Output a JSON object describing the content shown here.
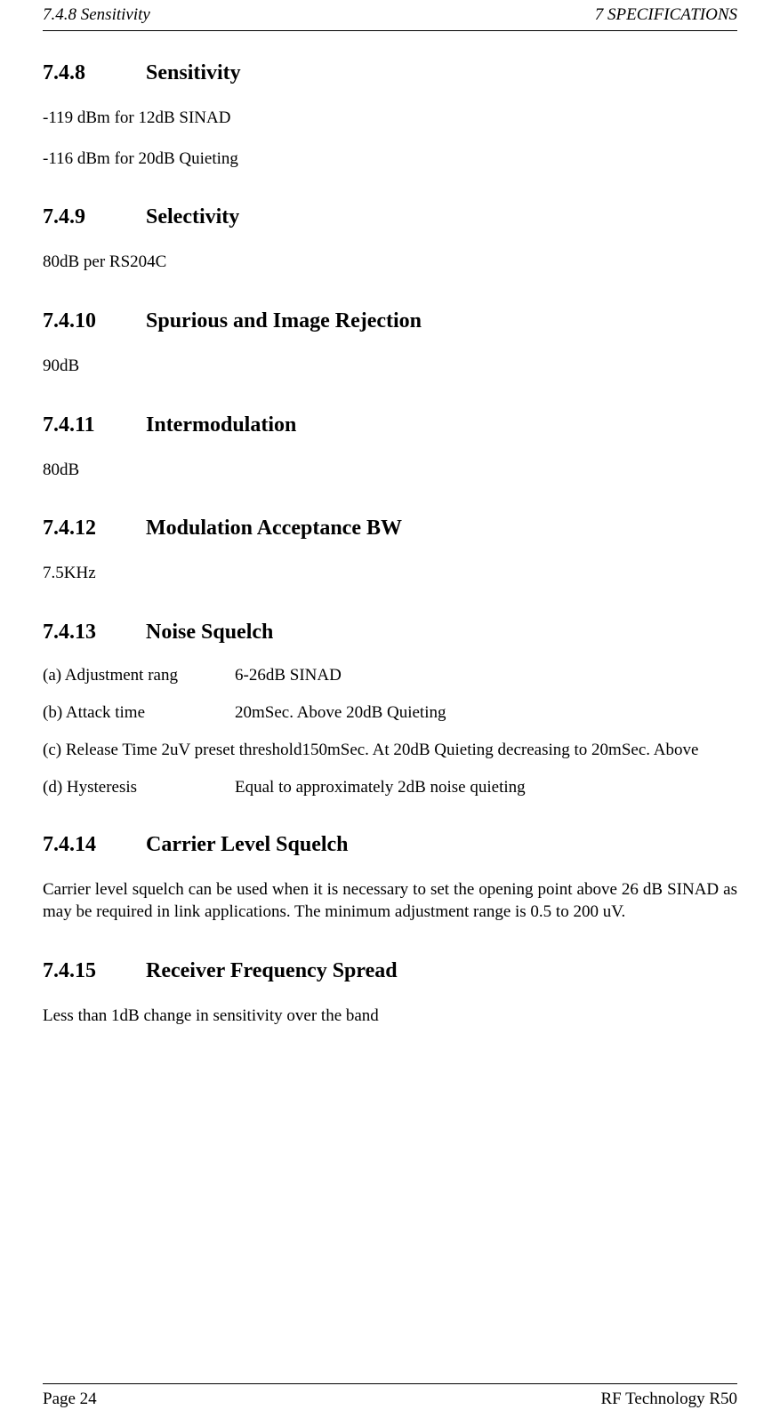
{
  "header": {
    "left": "7.4.8  Sensitivity",
    "right": "7  SPECIFICATIONS"
  },
  "sections": {
    "s748": {
      "num": "7.4.8",
      "title": "Sensitivity",
      "line1": "-119 dBm for 12dB SINAD",
      "line2": "-116 dBm for 20dB Quieting"
    },
    "s749": {
      "num": "7.4.9",
      "title": "Selectivity",
      "line1": "80dB per RS204C"
    },
    "s7410": {
      "num": "7.4.10",
      "title": "Spurious and Image Rejection",
      "line1": "90dB"
    },
    "s7411": {
      "num": "7.4.11",
      "title": "Intermodulation",
      "line1": "80dB"
    },
    "s7412": {
      "num": "7.4.12",
      "title": "Modulation Acceptance BW",
      "line1": "7.5KHz"
    },
    "s7413": {
      "num": "7.4.13",
      "title": "Noise Squelch",
      "rows": {
        "a": {
          "label": "(a) Adjustment rang",
          "value": "6-26dB SINAD"
        },
        "b": {
          "label": "(b) Attack time",
          "value": "20mSec. Above 20dB Quieting"
        },
        "c": {
          "label": "(c) Release Time 2uV preset threshold",
          "value": "150mSec.  At  20dB  Quieting  decreasing  to  20mSec.  Above"
        },
        "d": {
          "label": "(d) Hysteresis",
          "value": "Equal to approximately 2dB noise quieting"
        }
      }
    },
    "s7414": {
      "num": "7.4.14",
      "title": "Carrier Level Squelch",
      "para": "Carrier level squelch can be used when it is necessary to set the opening point above 26 dB SINAD as may be required in link applications. The minimum adjustment range is 0.5 to 200 uV."
    },
    "s7415": {
      "num": "7.4.15",
      "title": "Receiver Frequency Spread",
      "line1": "Less than 1dB change in sensitivity over the band"
    }
  },
  "footer": {
    "left": "Page 24",
    "right": "RF Technology   R50"
  }
}
